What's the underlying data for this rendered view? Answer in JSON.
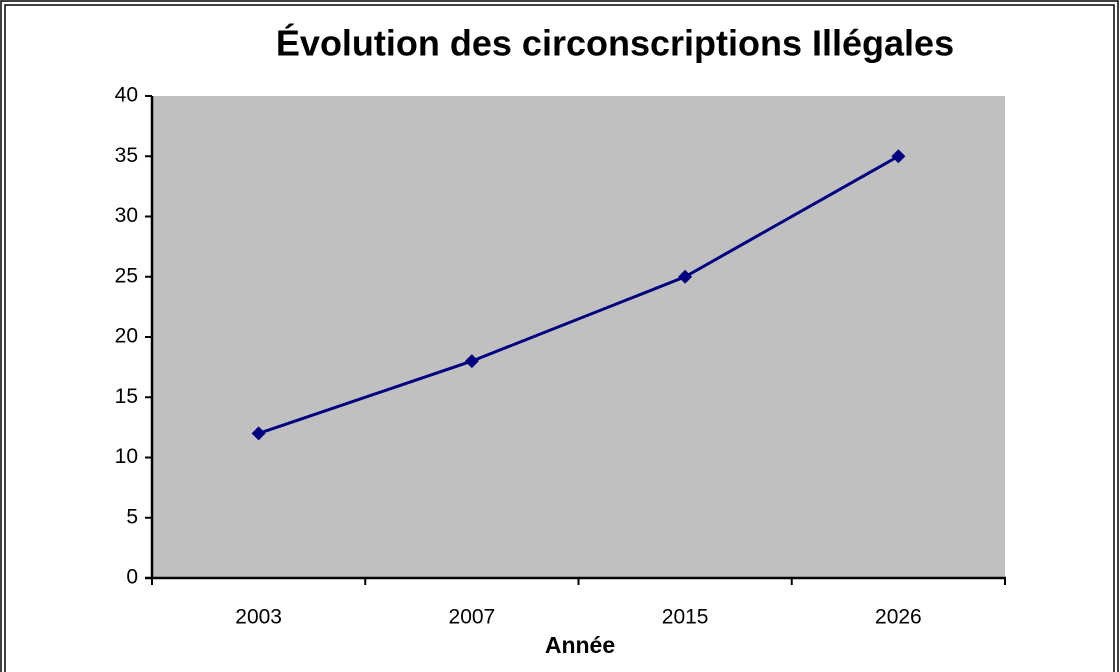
{
  "chart_data": {
    "type": "line",
    "title": "Évolution des circonscriptions Illégales",
    "x_label": "Année",
    "categories": [
      "2003",
      "2007",
      "2015",
      "2026"
    ],
    "series": [
      {
        "color": "#000080",
        "values": [
          12,
          18,
          25,
          35
        ]
      }
    ],
    "ylim": [
      0,
      40
    ],
    "yticks": [
      0,
      5,
      10,
      15,
      20,
      25,
      30,
      35,
      40
    ],
    "plot_background": "#c0c0c0"
  }
}
